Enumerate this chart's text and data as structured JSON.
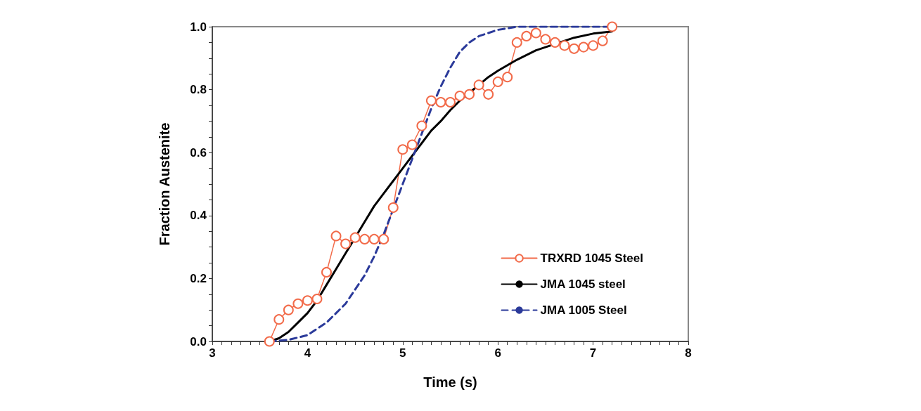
{
  "chart_data": {
    "type": "line",
    "xlabel": "Time (s)",
    "ylabel": "Fraction Austenite",
    "xlim": [
      3,
      8
    ],
    "ylim": [
      0,
      1
    ],
    "xticks": [
      3,
      {
        "value": 3.1,
        "label": null
      },
      {
        "value": 3.2,
        "label": null
      },
      {
        "value": 3.3,
        "label": null
      },
      {
        "value": 3.4,
        "label": null
      },
      {
        "value": 3.5,
        "label": null
      },
      {
        "value": 3.6,
        "label": null
      },
      {
        "value": 3.7,
        "label": null
      },
      {
        "value": 3.8,
        "label": null
      },
      {
        "value": 3.9,
        "label": null
      },
      4,
      {
        "value": 4.1,
        "label": null
      },
      {
        "value": 4.2,
        "label": null
      },
      {
        "value": 4.3,
        "label": null
      },
      {
        "value": 4.4,
        "label": null
      },
      {
        "value": 4.5,
        "label": null
      },
      {
        "value": 4.6,
        "label": null
      },
      {
        "value": 4.7,
        "label": null
      },
      {
        "value": 4.8,
        "label": null
      },
      {
        "value": 4.9,
        "label": null
      },
      5,
      {
        "value": 5.1,
        "label": null
      },
      {
        "value": 5.2,
        "label": null
      },
      {
        "value": 5.3,
        "label": null
      },
      {
        "value": 5.4,
        "label": null
      },
      {
        "value": 5.5,
        "label": null
      },
      {
        "value": 5.6,
        "label": null
      },
      {
        "value": 5.7,
        "label": null
      },
      {
        "value": 5.8,
        "label": null
      },
      {
        "value": 5.9,
        "label": null
      },
      6,
      {
        "value": 6.1,
        "label": null
      },
      {
        "value": 6.2,
        "label": null
      },
      {
        "value": 6.3,
        "label": null
      },
      {
        "value": 6.4,
        "label": null
      },
      {
        "value": 6.5,
        "label": null
      },
      {
        "value": 6.6,
        "label": null
      },
      {
        "value": 6.7,
        "label": null
      },
      {
        "value": 6.8,
        "label": null
      },
      {
        "value": 6.9,
        "label": null
      },
      7,
      {
        "value": 7.1,
        "label": null
      },
      {
        "value": 7.2,
        "label": null
      },
      {
        "value": 7.3,
        "label": null
      },
      {
        "value": 7.4,
        "label": null
      },
      {
        "value": 7.5,
        "label": null
      },
      {
        "value": 7.6,
        "label": null
      },
      {
        "value": 7.7,
        "label": null
      },
      {
        "value": 7.8,
        "label": null
      },
      {
        "value": 7.9,
        "label": null
      },
      8
    ],
    "yticks": [
      {
        "value": 0,
        "label": "0.0"
      },
      {
        "value": 0.05,
        "label": null
      },
      {
        "value": 0.1,
        "label": null
      },
      {
        "value": 0.15,
        "label": null
      },
      {
        "value": 0.2,
        "label": "0.2"
      },
      {
        "value": 0.25,
        "label": null
      },
      {
        "value": 0.3,
        "label": null
      },
      {
        "value": 0.35,
        "label": null
      },
      {
        "value": 0.4,
        "label": "0.4"
      },
      {
        "value": 0.45,
        "label": null
      },
      {
        "value": 0.5,
        "label": null
      },
      {
        "value": 0.55,
        "label": null
      },
      {
        "value": 0.6,
        "label": "0.6"
      },
      {
        "value": 0.65,
        "label": null
      },
      {
        "value": 0.7,
        "label": null
      },
      {
        "value": 0.75,
        "label": null
      },
      {
        "value": 0.8,
        "label": "0.8"
      },
      {
        "value": 0.85,
        "label": null
      },
      {
        "value": 0.9,
        "label": null
      },
      {
        "value": 0.95,
        "label": null
      },
      {
        "value": 1,
        "label": "1.0"
      }
    ],
    "grid": false,
    "legend": "bottom right",
    "series": [
      {
        "name": "TRXRD 1045 Steel",
        "color": "#f26b4a",
        "marker": "circle",
        "line_style": "solid",
        "x": [
          3.6,
          3.7,
          3.8,
          3.9,
          4.0,
          4.1,
          4.2,
          4.3,
          4.4,
          4.5,
          4.6,
          4.7,
          4.8,
          4.9,
          5.0,
          5.1,
          5.2,
          5.3,
          5.4,
          5.5,
          5.6,
          5.7,
          5.8,
          5.9,
          6.0,
          6.1,
          6.2,
          6.3,
          6.4,
          6.5,
          6.6,
          6.7,
          6.8,
          6.9,
          7.0,
          7.1,
          7.2
        ],
        "values": [
          0.0,
          0.07,
          0.1,
          0.12,
          0.13,
          0.135,
          0.22,
          0.335,
          0.31,
          0.33,
          0.325,
          0.325,
          0.325,
          0.425,
          0.61,
          0.625,
          0.685,
          0.765,
          0.76,
          0.76,
          0.78,
          0.785,
          0.815,
          0.785,
          0.825,
          0.84,
          0.95,
          0.97,
          0.98,
          0.96,
          0.95,
          0.94,
          0.93,
          0.935,
          0.94,
          0.955,
          1.0
        ]
      },
      {
        "name": "JMA 1045 steel",
        "color": "#000000",
        "marker": "none",
        "line_style": "solid",
        "x": [
          3.6,
          3.7,
          3.8,
          3.9,
          4.0,
          4.1,
          4.2,
          4.3,
          4.4,
          4.5,
          4.6,
          4.7,
          4.8,
          4.9,
          5.0,
          5.1,
          5.2,
          5.3,
          5.4,
          5.5,
          5.6,
          5.7,
          5.8,
          5.9,
          6.0,
          6.2,
          6.4,
          6.6,
          6.8,
          7.0,
          7.2
        ],
        "values": [
          0,
          0.01,
          0.03,
          0.06,
          0.09,
          0.13,
          0.18,
          0.23,
          0.28,
          0.33,
          0.38,
          0.43,
          0.47,
          0.51,
          0.55,
          0.59,
          0.63,
          0.67,
          0.7,
          0.735,
          0.765,
          0.79,
          0.815,
          0.84,
          0.86,
          0.895,
          0.925,
          0.945,
          0.965,
          0.978,
          0.985
        ]
      },
      {
        "name": "JMA 1005 Steel",
        "color": "#2b3a9a",
        "marker": "none",
        "line_style": "dashed",
        "x": [
          3.6,
          3.8,
          4.0,
          4.2,
          4.4,
          4.6,
          4.7,
          4.8,
          4.9,
          5.0,
          5.1,
          5.2,
          5.3,
          5.4,
          5.5,
          5.6,
          5.7,
          5.8,
          6.0,
          6.2,
          6.6,
          7.2
        ],
        "values": [
          0,
          0.005,
          0.02,
          0.06,
          0.12,
          0.21,
          0.27,
          0.34,
          0.42,
          0.5,
          0.58,
          0.66,
          0.74,
          0.81,
          0.87,
          0.92,
          0.95,
          0.97,
          0.99,
          1.0,
          1.0,
          1.0
        ]
      }
    ]
  }
}
